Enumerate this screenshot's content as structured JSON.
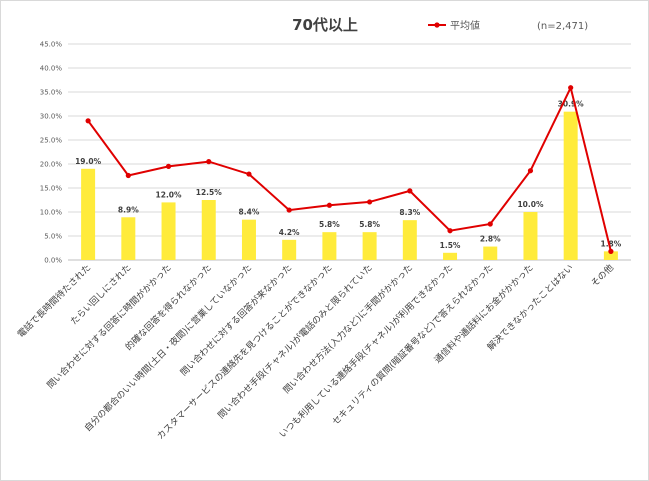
{
  "chart_data": {
    "type": "bar",
    "title": "70代以上",
    "note": "(n=2,471)",
    "legend": [
      {
        "name": "平均値",
        "marker": "line",
        "color": "#e00000"
      }
    ],
    "legend_position": "top-right",
    "ylim": [
      0,
      45
    ],
    "yticks": [
      "0.0%",
      "5.0%",
      "10.0%",
      "15.0%",
      "20.0%",
      "25.0%",
      "30.0%",
      "35.0%",
      "40.0%",
      "45.0%"
    ],
    "ytick_values": [
      0,
      5,
      10,
      15,
      20,
      25,
      30,
      35,
      40,
      45
    ],
    "grid": true,
    "categories": [
      "電話で長時間待たされた",
      "たらい回しにされた",
      "問い合わせに対する回答に時間がかかった",
      "的確な回答を得られなかった",
      "自分の都合のいい時間(土日・夜間)に営業していなかった",
      "問い合わせに対する回答が来なかった",
      "カスタマーサービスの連絡先を見つけることができなかった",
      "問い合わせ手段(チャネル)が電話のみと限られていた",
      "問い合わせ方法(入力など)に手間がかかった",
      "いつも利用している連絡手段(チャネル)が利用できなかった",
      "セキュリティの質問(暗証番号など)で答えられなかった",
      "通信料や通話料にお金がかかった",
      "解決できなかったことはない",
      "その他"
    ],
    "series": [
      {
        "type": "bar",
        "color": "#ffeb3b",
        "values": [
          19.0,
          8.9,
          12.0,
          12.5,
          8.4,
          4.2,
          5.8,
          5.8,
          8.3,
          1.5,
          2.8,
          10.0,
          30.9,
          1.8
        ],
        "labels": [
          "19.0%",
          "8.9%",
          "12.0%",
          "12.5%",
          "8.4%",
          "4.2%",
          "5.8%",
          "5.8%",
          "8.3%",
          "1.5%",
          "2.8%",
          "10.0%",
          "30.9%",
          "1.8%"
        ]
      },
      {
        "name": "平均値",
        "type": "line",
        "color": "#e00000",
        "values": [
          29.0,
          17.6,
          19.5,
          20.5,
          17.9,
          10.4,
          11.4,
          12.1,
          14.4,
          6.1,
          7.5,
          18.6,
          35.9,
          1.8
        ]
      }
    ]
  }
}
